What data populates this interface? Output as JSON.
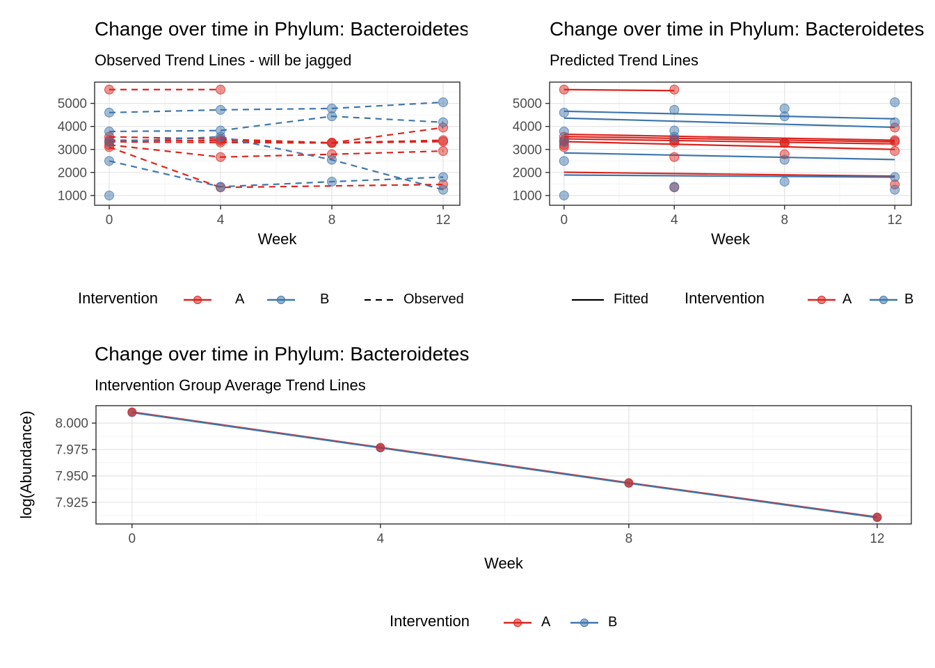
{
  "colors": {
    "A": "#DB241E",
    "B": "#3E76AC",
    "line_key": "#000000",
    "grid_major": "#E5E5E5",
    "grid_minor": "#F2F2F2",
    "panel_border": "#2E2E2E",
    "axis_text": "#4D4D4D"
  },
  "chart_data": [
    {
      "id": "observed",
      "type": "line",
      "title": "Change over time in Phylum: Bacteroidetes",
      "subtitle": "Observed Trend Lines - will be jagged",
      "xlabel": "Week",
      "ylabel": "",
      "x_ticks": [
        0,
        4,
        8,
        12
      ],
      "x_minor": [
        2,
        6,
        10
      ],
      "y_ticks": [
        1000,
        2000,
        3000,
        4000,
        5000
      ],
      "y_tick_labels": [
        "1000",
        "2000",
        "3000",
        "4000",
        "5000"
      ],
      "y_minor": [
        1500,
        2500,
        3500,
        4500,
        5500
      ],
      "xlim": [
        -0.525,
        12.6
      ],
      "ylim": [
        575,
        5925
      ],
      "grid": true,
      "line_style": "dashed",
      "legend": {
        "position": "bottom",
        "title": "Intervention",
        "groups": [
          "A",
          "B"
        ],
        "linetype_label": "Observed"
      },
      "series": [
        {
          "subject": "A1",
          "group": "A",
          "x": [
            0,
            4
          ],
          "y": [
            5600,
            5600
          ]
        },
        {
          "subject": "A2",
          "group": "A",
          "x": [
            0,
            4,
            8,
            12
          ],
          "y": [
            3550,
            3450,
            3290,
            3950
          ]
        },
        {
          "subject": "A3",
          "group": "A",
          "x": [
            0,
            4,
            8,
            12
          ],
          "y": [
            3400,
            3380,
            3290,
            3400
          ]
        },
        {
          "subject": "A4",
          "group": "A",
          "x": [
            0,
            4,
            8,
            12
          ],
          "y": [
            3330,
            3300,
            3280,
            3340
          ]
        },
        {
          "subject": "A5",
          "group": "A",
          "x": [
            0,
            4,
            8,
            12
          ],
          "y": [
            3200,
            2670,
            2790,
            2930
          ]
        },
        {
          "subject": "A6",
          "group": "A",
          "x": [
            0,
            4,
            12
          ],
          "y": [
            3100,
            1350,
            1480
          ]
        },
        {
          "subject": "B1",
          "group": "B",
          "x": [
            0,
            4,
            8,
            12
          ],
          "y": [
            4600,
            4720,
            4780,
            5050
          ]
        },
        {
          "subject": "B2",
          "group": "B",
          "x": [
            0,
            4,
            8,
            12
          ],
          "y": [
            3780,
            3820,
            4440,
            4180
          ]
        },
        {
          "subject": "B3",
          "group": "B",
          "x": [
            0,
            4,
            8,
            12
          ],
          "y": [
            3330,
            3550,
            2550,
            1250
          ]
        },
        {
          "subject": "B4",
          "group": "B",
          "x": [
            0,
            4,
            8,
            12
          ],
          "y": [
            2500,
            1380,
            1600,
            1800
          ]
        },
        {
          "subject": "B5",
          "group": "B",
          "x": [
            0
          ],
          "y": [
            1000
          ]
        }
      ]
    },
    {
      "id": "fitted",
      "type": "line",
      "title": "Change over time in Phylum: Bacteroidetes",
      "subtitle": "Predicted Trend Lines",
      "xlabel": "Week",
      "ylabel": "",
      "x_ticks": [
        0,
        4,
        8,
        12
      ],
      "x_minor": [
        2,
        6,
        10
      ],
      "y_ticks": [
        1000,
        2000,
        3000,
        4000,
        5000
      ],
      "y_tick_labels": [
        "1000",
        "2000",
        "3000",
        "4000",
        "5000"
      ],
      "y_minor": [
        1500,
        2500,
        3500,
        4500,
        5500
      ],
      "xlim": [
        -0.525,
        12.6
      ],
      "ylim": [
        575,
        5925
      ],
      "grid": true,
      "line_style": "solid",
      "legend": {
        "position": "bottom",
        "title": "Intervention",
        "groups": [
          "A",
          "B"
        ],
        "linetype_label": "Fitted"
      },
      "series": [
        {
          "subject": "A1",
          "group": "A",
          "x": [
            0,
            4
          ],
          "y": [
            5600,
            5600
          ],
          "line_x": [
            0,
            4
          ],
          "line_y": [
            5600,
            5555
          ]
        },
        {
          "subject": "A2",
          "group": "A",
          "x": [
            0,
            4,
            8,
            12
          ],
          "y": [
            3550,
            3450,
            3290,
            3950
          ],
          "line_x": [
            0,
            12
          ],
          "line_y": [
            3660,
            3400
          ]
        },
        {
          "subject": "A3",
          "group": "A",
          "x": [
            0,
            4,
            8,
            12
          ],
          "y": [
            3400,
            3380,
            3290,
            3400
          ],
          "line_x": [
            0,
            12
          ],
          "line_y": [
            3560,
            3330
          ]
        },
        {
          "subject": "A4",
          "group": "A",
          "x": [
            0,
            4,
            8,
            12
          ],
          "y": [
            3330,
            3300,
            3280,
            3340
          ],
          "line_x": [
            0,
            12
          ],
          "line_y": [
            3460,
            3240
          ]
        },
        {
          "subject": "A5",
          "group": "A",
          "x": [
            0,
            4,
            8,
            12
          ],
          "y": [
            3200,
            2670,
            2790,
            2930
          ],
          "line_x": [
            0,
            12
          ],
          "line_y": [
            3340,
            3000
          ]
        },
        {
          "subject": "A6",
          "group": "A",
          "x": [
            0,
            4,
            12
          ],
          "y": [
            3100,
            1350,
            1480
          ],
          "line_x": [
            0,
            12
          ],
          "line_y": [
            2010,
            1840
          ]
        },
        {
          "subject": "B1",
          "group": "B",
          "x": [
            0,
            4,
            8,
            12
          ],
          "y": [
            4600,
            4720,
            4780,
            5050
          ],
          "line_x": [
            0,
            12
          ],
          "line_y": [
            4660,
            4330
          ]
        },
        {
          "subject": "B2",
          "group": "B",
          "x": [
            0,
            4,
            8,
            12
          ],
          "y": [
            3780,
            3820,
            4440,
            4180
          ],
          "line_x": [
            0,
            12
          ],
          "line_y": [
            4360,
            3960
          ]
        },
        {
          "subject": "B3",
          "group": "B",
          "x": [
            0,
            4,
            8,
            12
          ],
          "y": [
            3330,
            3550,
            2550,
            1250
          ],
          "line_x": [
            0,
            12
          ],
          "line_y": [
            2850,
            2560
          ]
        },
        {
          "subject": "B4",
          "group": "B",
          "x": [
            0,
            4,
            8,
            12
          ],
          "y": [
            2500,
            1380,
            1600,
            1800
          ],
          "line_x": [
            0,
            12
          ],
          "line_y": [
            1890,
            1795
          ]
        },
        {
          "subject": "B5",
          "group": "B",
          "x": [
            0
          ],
          "y": [
            1000
          ],
          "line_x": [],
          "line_y": []
        }
      ]
    },
    {
      "id": "average",
      "type": "line",
      "title": "Change over time in Phylum: Bacteroidetes",
      "subtitle": "Intervention Group Average Trend Lines",
      "xlabel": "Week",
      "ylabel": "log(Abundance)",
      "x_ticks": [
        0,
        4,
        8,
        12
      ],
      "x_minor": [
        2,
        6,
        10
      ],
      "y_ticks": [
        7.925,
        7.95,
        7.975,
        8.0
      ],
      "y_tick_labels": [
        "7.925",
        "7.950",
        "7.975",
        "8.000"
      ],
      "y_minor": [
        7.9125,
        7.9375,
        7.9625,
        7.9875,
        8.0125
      ],
      "xlim": [
        -0.58,
        12.55
      ],
      "ylim": [
        7.9045,
        8.0165
      ],
      "grid": true,
      "line_style": "solid",
      "legend": {
        "position": "bottom",
        "title": "Intervention",
        "groups": [
          "A",
          "B"
        ]
      },
      "series": [
        {
          "subject": "mean-A",
          "group": "A",
          "x": [
            0,
            4,
            8,
            12
          ],
          "y": [
            8.0105,
            7.977,
            7.9435,
            7.911
          ]
        },
        {
          "subject": "mean-B",
          "group": "B",
          "x": [
            0,
            4,
            8,
            12
          ],
          "y": [
            8.01,
            7.9765,
            7.943,
            7.9105
          ]
        }
      ]
    }
  ]
}
